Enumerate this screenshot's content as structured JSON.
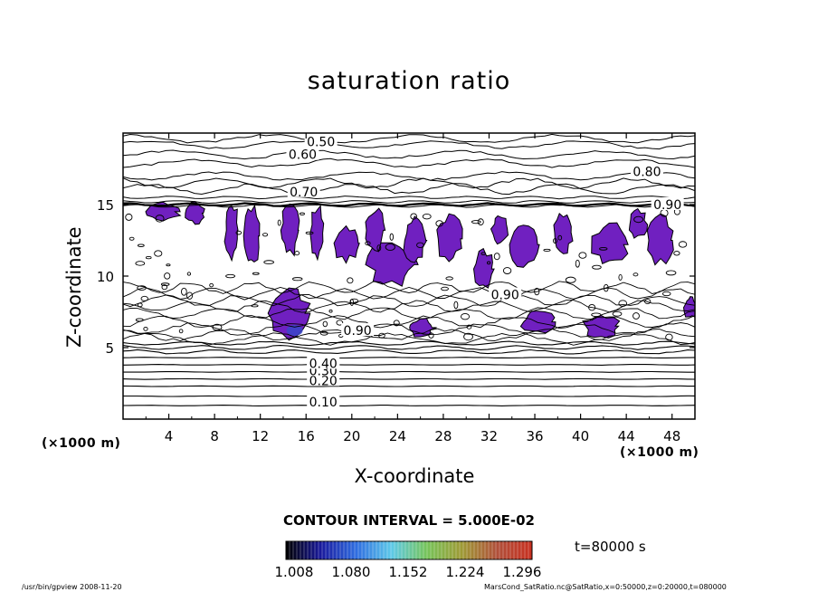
{
  "chart_data": {
    "type": "heatmap",
    "title": "saturation ratio",
    "xlabel": "X-coordinate",
    "ylabel": "Z-coordinate",
    "x_unit_label": "(×1000 m)",
    "y_unit_label": "(×1000 m)",
    "xlim": [
      0,
      50
    ],
    "ylim": [
      0,
      20
    ],
    "x_ticks": [
      "4",
      "8",
      "12",
      "16",
      "20",
      "24",
      "28",
      "32",
      "36",
      "40",
      "44",
      "48"
    ],
    "y_ticks": [
      "5",
      "10",
      "15"
    ],
    "x_tick_values": [
      4,
      8,
      12,
      16,
      20,
      24,
      28,
      32,
      36,
      40,
      44,
      48
    ],
    "y_tick_values": [
      5,
      10,
      15
    ],
    "contour_interval_text": "CONTOUR INTERVAL = 5.000E-02",
    "contour_labels": [
      {
        "text": "0.10",
        "x": 17.5,
        "z": 1.2
      },
      {
        "text": "0.20",
        "x": 17.5,
        "z": 2.7
      },
      {
        "text": "0.30",
        "x": 17.5,
        "z": 3.4
      },
      {
        "text": "0.40",
        "x": 17.5,
        "z": 3.9
      },
      {
        "text": "0.50",
        "x": 17.3,
        "z": 19.4
      },
      {
        "text": "0.60",
        "x": 15.7,
        "z": 18.5
      },
      {
        "text": "0.70",
        "x": 15.8,
        "z": 15.9
      },
      {
        "text": "0.80",
        "x": 45.8,
        "z": 17.3
      },
      {
        "text": "0.90",
        "x": 47.6,
        "z": 15.0
      },
      {
        "text": "0.90",
        "x": 33.4,
        "z": 8.7
      },
      {
        "text": "0.90",
        "x": 20.5,
        "z": 6.2
      }
    ],
    "horizontal_contours_z": [
      0.95,
      1.6,
      2.3,
      2.8,
      3.3,
      3.8,
      4.3,
      4.7,
      5.0,
      5.3,
      17.0,
      17.9,
      18.5,
      19.2,
      19.6
    ],
    "purple_regions": [
      {
        "x": 3.5,
        "z": 14.5,
        "rx": 1.4,
        "rz": 0.6
      },
      {
        "x": 6.3,
        "z": 14.4,
        "rx": 0.8,
        "rz": 0.7
      },
      {
        "x": 9.5,
        "z": 13.2,
        "rx": 0.6,
        "rz": 1.8
      },
      {
        "x": 11.2,
        "z": 12.8,
        "rx": 0.7,
        "rz": 2.0
      },
      {
        "x": 14.5,
        "z": 7.4,
        "rx": 1.8,
        "rz": 1.6
      },
      {
        "x": 14.6,
        "z": 13.2,
        "rx": 0.8,
        "rz": 1.6
      },
      {
        "x": 17.0,
        "z": 13.0,
        "rx": 0.6,
        "rz": 1.8
      },
      {
        "x": 19.5,
        "z": 12.3,
        "rx": 1.0,
        "rz": 1.2
      },
      {
        "x": 23.5,
        "z": 10.8,
        "rx": 2.0,
        "rz": 1.4
      },
      {
        "x": 22.0,
        "z": 13.2,
        "rx": 0.8,
        "rz": 1.4
      },
      {
        "x": 25.5,
        "z": 12.5,
        "rx": 0.9,
        "rz": 1.6
      },
      {
        "x": 28.5,
        "z": 12.6,
        "rx": 1.1,
        "rz": 1.6
      },
      {
        "x": 26.0,
        "z": 6.4,
        "rx": 1.2,
        "rz": 0.6
      },
      {
        "x": 31.5,
        "z": 10.5,
        "rx": 0.9,
        "rz": 1.2
      },
      {
        "x": 33.0,
        "z": 13.3,
        "rx": 0.7,
        "rz": 1.1
      },
      {
        "x": 35.0,
        "z": 12.2,
        "rx": 1.2,
        "rz": 1.4
      },
      {
        "x": 36.3,
        "z": 6.8,
        "rx": 1.4,
        "rz": 0.7
      },
      {
        "x": 38.5,
        "z": 13.0,
        "rx": 0.8,
        "rz": 1.3
      },
      {
        "x": 41.8,
        "z": 6.5,
        "rx": 1.5,
        "rz": 0.8
      },
      {
        "x": 42.5,
        "z": 12.2,
        "rx": 1.5,
        "rz": 1.4
      },
      {
        "x": 45.0,
        "z": 13.6,
        "rx": 0.8,
        "rz": 1.0
      },
      {
        "x": 47.0,
        "z": 12.5,
        "rx": 1.1,
        "rz": 1.6
      },
      {
        "x": 49.6,
        "z": 7.8,
        "rx": 0.5,
        "rz": 0.8
      }
    ],
    "colorbar": {
      "tick_labels": [
        "1.008",
        "1.080",
        "1.152",
        "1.224",
        "1.296"
      ],
      "min": 1.008,
      "max": 1.296,
      "colors": [
        "#000000",
        "#1a1a9e",
        "#2f6de0",
        "#5ec9e8",
        "#76c45a",
        "#9e9a35",
        "#b0503a",
        "#c83020"
      ]
    },
    "fill_color": "#7020c0"
  },
  "annotations": {
    "time": "t=80000 s",
    "footer_left": "/usr/bin/gpview  2008-11-20",
    "footer_right": "MarsCond_SatRatio.nc@SatRatio,x=0:50000,z=0:20000,t=080000"
  }
}
